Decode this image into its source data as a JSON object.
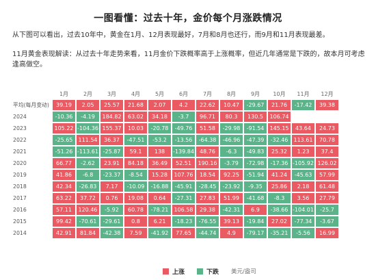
{
  "title": "一图看懂：过去十年，金价每个月涨跌情况",
  "intro": "从下图可以看出，过去10年中，黄金在1月、12月表现最好，7月和8月也还行，而9月和11月表现最差。",
  "analysis": "11月黄金表现解读：从过去十年走势来看，11月金价下跌概率高于上涨概率，但近几年通常是下跌的，故本月可考虑逢高做空。",
  "colors": {
    "up": "#ea5a62",
    "down": "#5bb38a"
  },
  "legend": {
    "up_label": "上涨",
    "down_label": "下跌",
    "source": "美元/盎司"
  },
  "months": [
    "1月",
    "2月",
    "3月",
    "4月",
    "5月",
    "6月",
    "7月",
    "8月",
    "9月",
    "10月",
    "11月",
    "12月"
  ],
  "rows": [
    {
      "label": "平均(每月变动)",
      "values": [
        "39.19",
        "2.05",
        "25.57",
        "21.68",
        "2.07",
        "4.2",
        "22.62",
        "10.47",
        "-29.67",
        "21.76",
        "-17.42",
        "39.38"
      ]
    },
    {
      "label": "2024",
      "values": [
        "-10.36",
        "-4.19",
        "184.82",
        "63.02",
        "34.18",
        "-3.7",
        "96.71",
        "80.3",
        "130.5",
        "106.74",
        "",
        ""
      ]
    },
    {
      "label": "2023",
      "values": [
        "105.22",
        "-104.36",
        "155.37",
        "10.03",
        "-20.78",
        "-49.76",
        "51.58",
        "-29.98",
        "-91.54",
        "145.15",
        "43.64",
        "24.73"
      ]
    },
    {
      "label": "2022",
      "values": [
        "-25.65",
        "111.54",
        "36.37",
        "-47.51",
        "-53.2",
        "-13.56",
        "-64.38",
        "-46.96",
        "-47.39",
        "-32.46",
        "113.61",
        "70.78"
      ]
    },
    {
      "label": "2021",
      "values": [
        "-51.26",
        "-113.61",
        "-25.87",
        "59.1",
        "138",
        "-139.84",
        "48.76",
        "-6.3",
        "-49.83",
        "25.32",
        "1.23",
        "37.4"
      ]
    },
    {
      "label": "2020",
      "values": [
        "66.77",
        "-2.62",
        "23.91",
        "84.18",
        "36.49",
        "52.51",
        "190.16",
        "-3.79",
        "-72.98",
        "-17.36",
        "-105.92",
        "126.02"
      ]
    },
    {
      "label": "2019",
      "values": [
        "41.86",
        "-6.8",
        "-23.37",
        "-8.54",
        "15.28",
        "107.76",
        "18.54",
        "92.25",
        "-51.94",
        "41.24",
        "-45.63",
        "57.99"
      ]
    },
    {
      "label": "2018",
      "values": [
        "42.34",
        "-26.83",
        "7.17",
        "-10.09",
        "-16.88",
        "-45.91",
        "-28.45",
        "-23.92",
        "-9.35",
        "25.86",
        "2.18",
        "61.48"
      ]
    },
    {
      "label": "2017",
      "values": [
        "63.22",
        "37.72",
        "0.76",
        "19.08",
        "0.64",
        "-27.31",
        "27.83",
        "51.99",
        "-41.68",
        "-8.3",
        "3.56",
        "27.79"
      ]
    },
    {
      "label": "2016",
      "values": [
        "57.11",
        "120.46",
        "-5.92",
        "60.78",
        "-78.21",
        "106.58",
        "29.38",
        "-42.31",
        "6.9",
        "-38.66",
        "-104.01",
        "-25.7"
      ]
    },
    {
      "label": "2015",
      "values": [
        "99.42",
        "-70.61",
        "-29.61",
        "0.8",
        "6.21",
        "-18.23",
        "-76.55",
        "39.13",
        "-19.84",
        "27.02",
        "-77.34",
        "-3.67"
      ]
    },
    {
      "label": "2014",
      "values": [
        "42.91",
        "81.84",
        "-42.38",
        "7.59",
        "-41.92",
        "77.65",
        "-44.74",
        "4.9",
        "-79.17",
        "-35.21",
        "-5.56",
        "16.99"
      ]
    }
  ]
}
